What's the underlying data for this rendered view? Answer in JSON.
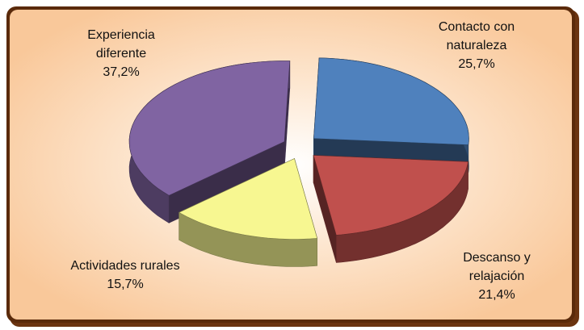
{
  "chart_data": {
    "type": "pie",
    "categories": [
      "Contacto con naturaleza",
      "Descanso y relajación",
      "Actividades rurales",
      "Experiencia diferente"
    ],
    "values": [
      25.7,
      21.4,
      15.7,
      37.2
    ],
    "value_labels": [
      "25,7%",
      "21,4%",
      "15,7%",
      "37,2%"
    ],
    "colors": [
      "#4f81bd",
      "#c0504d",
      "#f7f791",
      "#8064a2"
    ]
  }
}
